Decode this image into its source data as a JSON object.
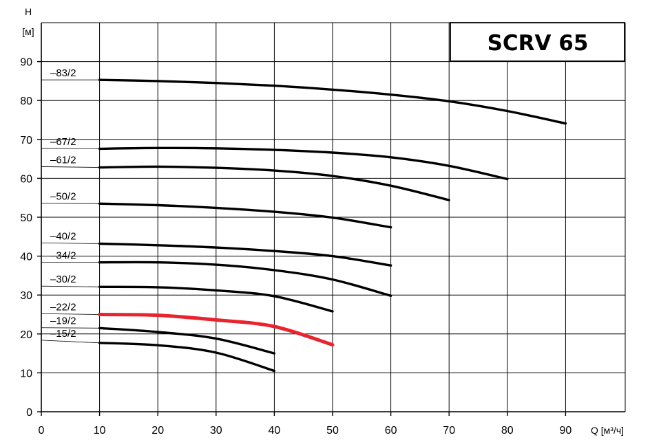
{
  "chart_data": {
    "type": "line",
    "title": "SCRV 65",
    "xlabel": "Q [м³/ч]",
    "ylabel_top": "H",
    "ylabel_unit": "[м]",
    "xlim": [
      0,
      100
    ],
    "ylim": [
      0,
      100
    ],
    "x_ticks": [
      0,
      10,
      20,
      30,
      40,
      50,
      60,
      70,
      80,
      90
    ],
    "y_ticks": [
      0,
      10,
      20,
      30,
      40,
      50,
      60,
      70,
      80,
      90
    ],
    "grid": true,
    "series": [
      {
        "name": "–83/2",
        "label_y": 85.3,
        "color": "#000000",
        "points": [
          [
            10,
            85.3
          ],
          [
            20,
            85
          ],
          [
            30,
            84.5
          ],
          [
            40,
            83.8
          ],
          [
            50,
            82.8
          ],
          [
            60,
            81.5
          ],
          [
            70,
            79.8
          ],
          [
            80,
            77.3
          ],
          [
            90,
            74.1
          ]
        ]
      },
      {
        "name": "–67/2",
        "label_y": 67.7,
        "color": "#000000",
        "points": [
          [
            10,
            67.6
          ],
          [
            20,
            67.8
          ],
          [
            30,
            67.7
          ],
          [
            40,
            67.3
          ],
          [
            50,
            66.6
          ],
          [
            60,
            65.4
          ],
          [
            70,
            63.2
          ],
          [
            80,
            59.8
          ]
        ]
      },
      {
        "name": "–61/2",
        "label_y": 63.0,
        "color": "#000000",
        "points": [
          [
            10,
            62.8
          ],
          [
            20,
            63
          ],
          [
            30,
            62.7
          ],
          [
            40,
            62
          ],
          [
            50,
            60.6
          ],
          [
            60,
            58.1
          ],
          [
            70,
            54.4
          ]
        ]
      },
      {
        "name": "–50/2",
        "label_y": 53.6,
        "color": "#000000",
        "points": [
          [
            10,
            53.5
          ],
          [
            20,
            53.1
          ],
          [
            30,
            52.4
          ],
          [
            40,
            51.4
          ],
          [
            50,
            49.9
          ],
          [
            60,
            47.4
          ]
        ]
      },
      {
        "name": "–40/2",
        "label_y": 43.4,
        "color": "#000000",
        "points": [
          [
            10,
            43.2
          ],
          [
            20,
            42.8
          ],
          [
            30,
            42.2
          ],
          [
            40,
            41.3
          ],
          [
            50,
            40
          ],
          [
            60,
            37.6
          ]
        ]
      },
      {
        "name": "–34/2",
        "label_y": 38.4,
        "color": "#000000",
        "points": [
          [
            10,
            38.4
          ],
          [
            20,
            38.4
          ],
          [
            30,
            37.8
          ],
          [
            40,
            36.4
          ],
          [
            50,
            34
          ],
          [
            60,
            29.8
          ]
        ]
      },
      {
        "name": "–30/2",
        "label_y": 32.3,
        "color": "#000000",
        "points": [
          [
            10,
            32.1
          ],
          [
            20,
            32
          ],
          [
            30,
            31.2
          ],
          [
            40,
            29.7
          ],
          [
            50,
            25.8
          ]
        ]
      },
      {
        "name": "–22/2",
        "label_y": 25.2,
        "color": "#e8242f",
        "points": [
          [
            10,
            25
          ],
          [
            20,
            24.8
          ],
          [
            30,
            23.6
          ],
          [
            40,
            21.9
          ],
          [
            50,
            17.2
          ]
        ]
      },
      {
        "name": "–19/2",
        "label_y": 21.6,
        "color": "#000000",
        "points": [
          [
            10,
            21.5
          ],
          [
            20,
            20.5
          ],
          [
            30,
            18.8
          ],
          [
            40,
            15
          ]
        ]
      },
      {
        "name": "–15/2",
        "label_y": 18.4,
        "color": "#000000",
        "points": [
          [
            10,
            17.7
          ],
          [
            20,
            17.1
          ],
          [
            30,
            15.2
          ],
          [
            40,
            10.5
          ]
        ]
      }
    ]
  }
}
